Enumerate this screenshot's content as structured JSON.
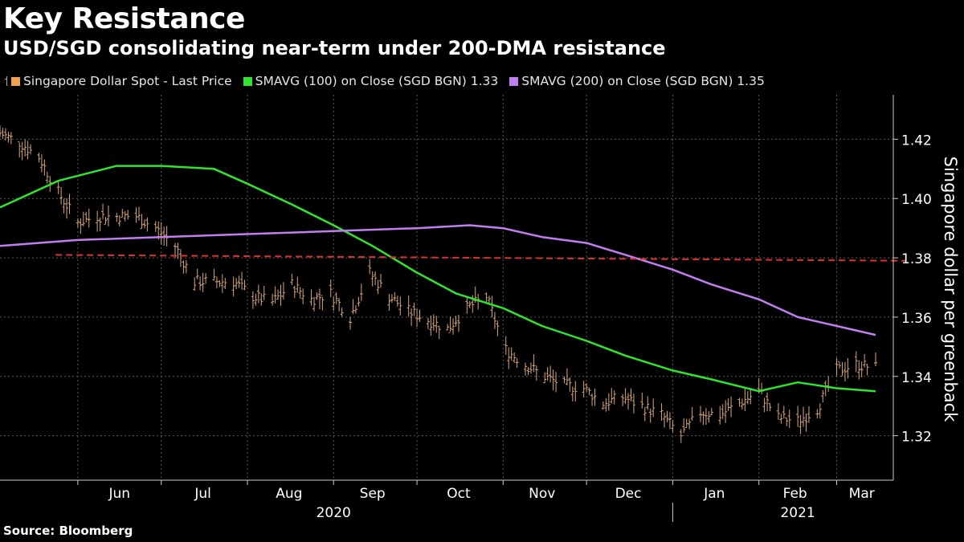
{
  "title": "Key Resistance",
  "subtitle": "USD/SGD consolidating near-term under 200-DMA resistance",
  "source": "Source: Bloomberg",
  "legend": {
    "spot": "Singapore Dollar Spot - Last Price",
    "sma100": "SMAVG (100)  on Close (SGD BGN) 1.33",
    "sma200": "SMAVG (200)  on Close (SGD BGN) 1.35"
  },
  "colors": {
    "spot": "#d9a77a",
    "sma100": "#2ee52e",
    "sma200": "#c07ef0",
    "resistance": "#e03030",
    "grid": "#5a5a5a",
    "swatch_spot": "#f0a050"
  },
  "chart_data": {
    "type": "line",
    "ylabel": "Singapore dollar per greenback",
    "ylim": [
      1.305,
      1.435
    ],
    "y_ticks": [
      "1.32",
      "1.34",
      "1.36",
      "1.38",
      "1.40",
      "1.42"
    ],
    "x_range": [
      "2020-05-04",
      "2021-03-15"
    ],
    "x_month_labels": [
      {
        "label": "Jun",
        "date": "2020-06-16"
      },
      {
        "label": "Jul",
        "date": "2020-07-16"
      },
      {
        "label": "Aug",
        "date": "2020-08-16"
      },
      {
        "label": "Sep",
        "date": "2020-09-15"
      },
      {
        "label": "Oct",
        "date": "2020-10-16"
      },
      {
        "label": "Nov",
        "date": "2020-11-15"
      },
      {
        "label": "Dec",
        "date": "2020-12-16"
      },
      {
        "label": "Jan",
        "date": "2021-01-16"
      },
      {
        "label": "Feb",
        "date": "2021-02-14"
      },
      {
        "label": "Mar",
        "date": "2021-03-10"
      }
    ],
    "x_year_labels": [
      {
        "label": "2020",
        "date": "2020-09-01"
      },
      {
        "label": "2021",
        "date": "2021-02-15"
      }
    ],
    "x_month_boundaries": [
      "2020-06-01",
      "2020-07-01",
      "2020-08-01",
      "2020-09-01",
      "2020-10-01",
      "2020-11-01",
      "2020-12-01",
      "2021-01-01",
      "2021-02-01",
      "2021-03-01"
    ],
    "year_boundary": "2021-01-01",
    "series": [
      {
        "name": "Singapore Dollar Spot - Last Price",
        "kind": "ohlc",
        "x": [
          "2020-05-04",
          "2020-05-11",
          "2020-05-18",
          "2020-05-25",
          "2020-06-01",
          "2020-06-08",
          "2020-06-15",
          "2020-06-22",
          "2020-06-29",
          "2020-07-06",
          "2020-07-13",
          "2020-07-20",
          "2020-07-27",
          "2020-08-03",
          "2020-08-10",
          "2020-08-17",
          "2020-08-24",
          "2020-08-31",
          "2020-09-07",
          "2020-09-14",
          "2020-09-21",
          "2020-09-28",
          "2020-10-05",
          "2020-10-12",
          "2020-10-19",
          "2020-10-26",
          "2020-11-02",
          "2020-11-09",
          "2020-11-16",
          "2020-11-23",
          "2020-11-30",
          "2020-12-07",
          "2020-12-14",
          "2020-12-21",
          "2020-12-28",
          "2021-01-04",
          "2021-01-11",
          "2021-01-18",
          "2021-01-25",
          "2021-02-01",
          "2021-02-08",
          "2021-02-15",
          "2021-02-22",
          "2021-03-01",
          "2021-03-08",
          "2021-03-15"
        ],
        "values": [
          1.422,
          1.419,
          1.414,
          1.402,
          1.392,
          1.394,
          1.394,
          1.394,
          1.39,
          1.384,
          1.372,
          1.372,
          1.372,
          1.367,
          1.365,
          1.371,
          1.366,
          1.368,
          1.36,
          1.375,
          1.367,
          1.362,
          1.359,
          1.356,
          1.363,
          1.367,
          1.349,
          1.344,
          1.34,
          1.337,
          1.336,
          1.331,
          1.333,
          1.33,
          1.327,
          1.32,
          1.328,
          1.327,
          1.331,
          1.335,
          1.326,
          1.325,
          1.329,
          1.342,
          1.344,
          1.343
        ]
      },
      {
        "name": "SMAVG (100)  on Close (SGD BGN) 1.33",
        "kind": "line",
        "x": [
          "2020-05-04",
          "2020-05-25",
          "2020-06-15",
          "2020-07-01",
          "2020-07-20",
          "2020-08-01",
          "2020-08-17",
          "2020-09-01",
          "2020-09-15",
          "2020-10-01",
          "2020-10-15",
          "2020-11-01",
          "2020-11-15",
          "2020-12-01",
          "2020-12-15",
          "2021-01-01",
          "2021-01-15",
          "2021-02-01",
          "2021-02-15",
          "2021-03-01",
          "2021-03-15"
        ],
        "values": [
          1.397,
          1.406,
          1.411,
          1.411,
          1.41,
          1.405,
          1.398,
          1.391,
          1.384,
          1.375,
          1.368,
          1.363,
          1.357,
          1.352,
          1.347,
          1.342,
          1.339,
          1.335,
          1.338,
          1.336,
          1.335
        ]
      },
      {
        "name": "SMAVG (200)  on Close (SGD BGN) 1.35",
        "kind": "line",
        "x": [
          "2020-05-04",
          "2020-06-01",
          "2020-07-01",
          "2020-08-01",
          "2020-09-01",
          "2020-10-01",
          "2020-10-20",
          "2020-11-01",
          "2020-11-15",
          "2020-12-01",
          "2020-12-15",
          "2021-01-01",
          "2021-01-15",
          "2021-02-01",
          "2021-02-15",
          "2021-03-01",
          "2021-03-15"
        ],
        "values": [
          1.384,
          1.386,
          1.387,
          1.388,
          1.389,
          1.39,
          1.391,
          1.39,
          1.387,
          1.385,
          1.381,
          1.376,
          1.371,
          1.366,
          1.36,
          1.357,
          1.354
        ]
      },
      {
        "name": "",
        "kind": "resistance",
        "x": [
          "2020-05-24",
          "2021-03-26"
        ],
        "values": [
          1.381,
          1.379
        ]
      }
    ]
  }
}
